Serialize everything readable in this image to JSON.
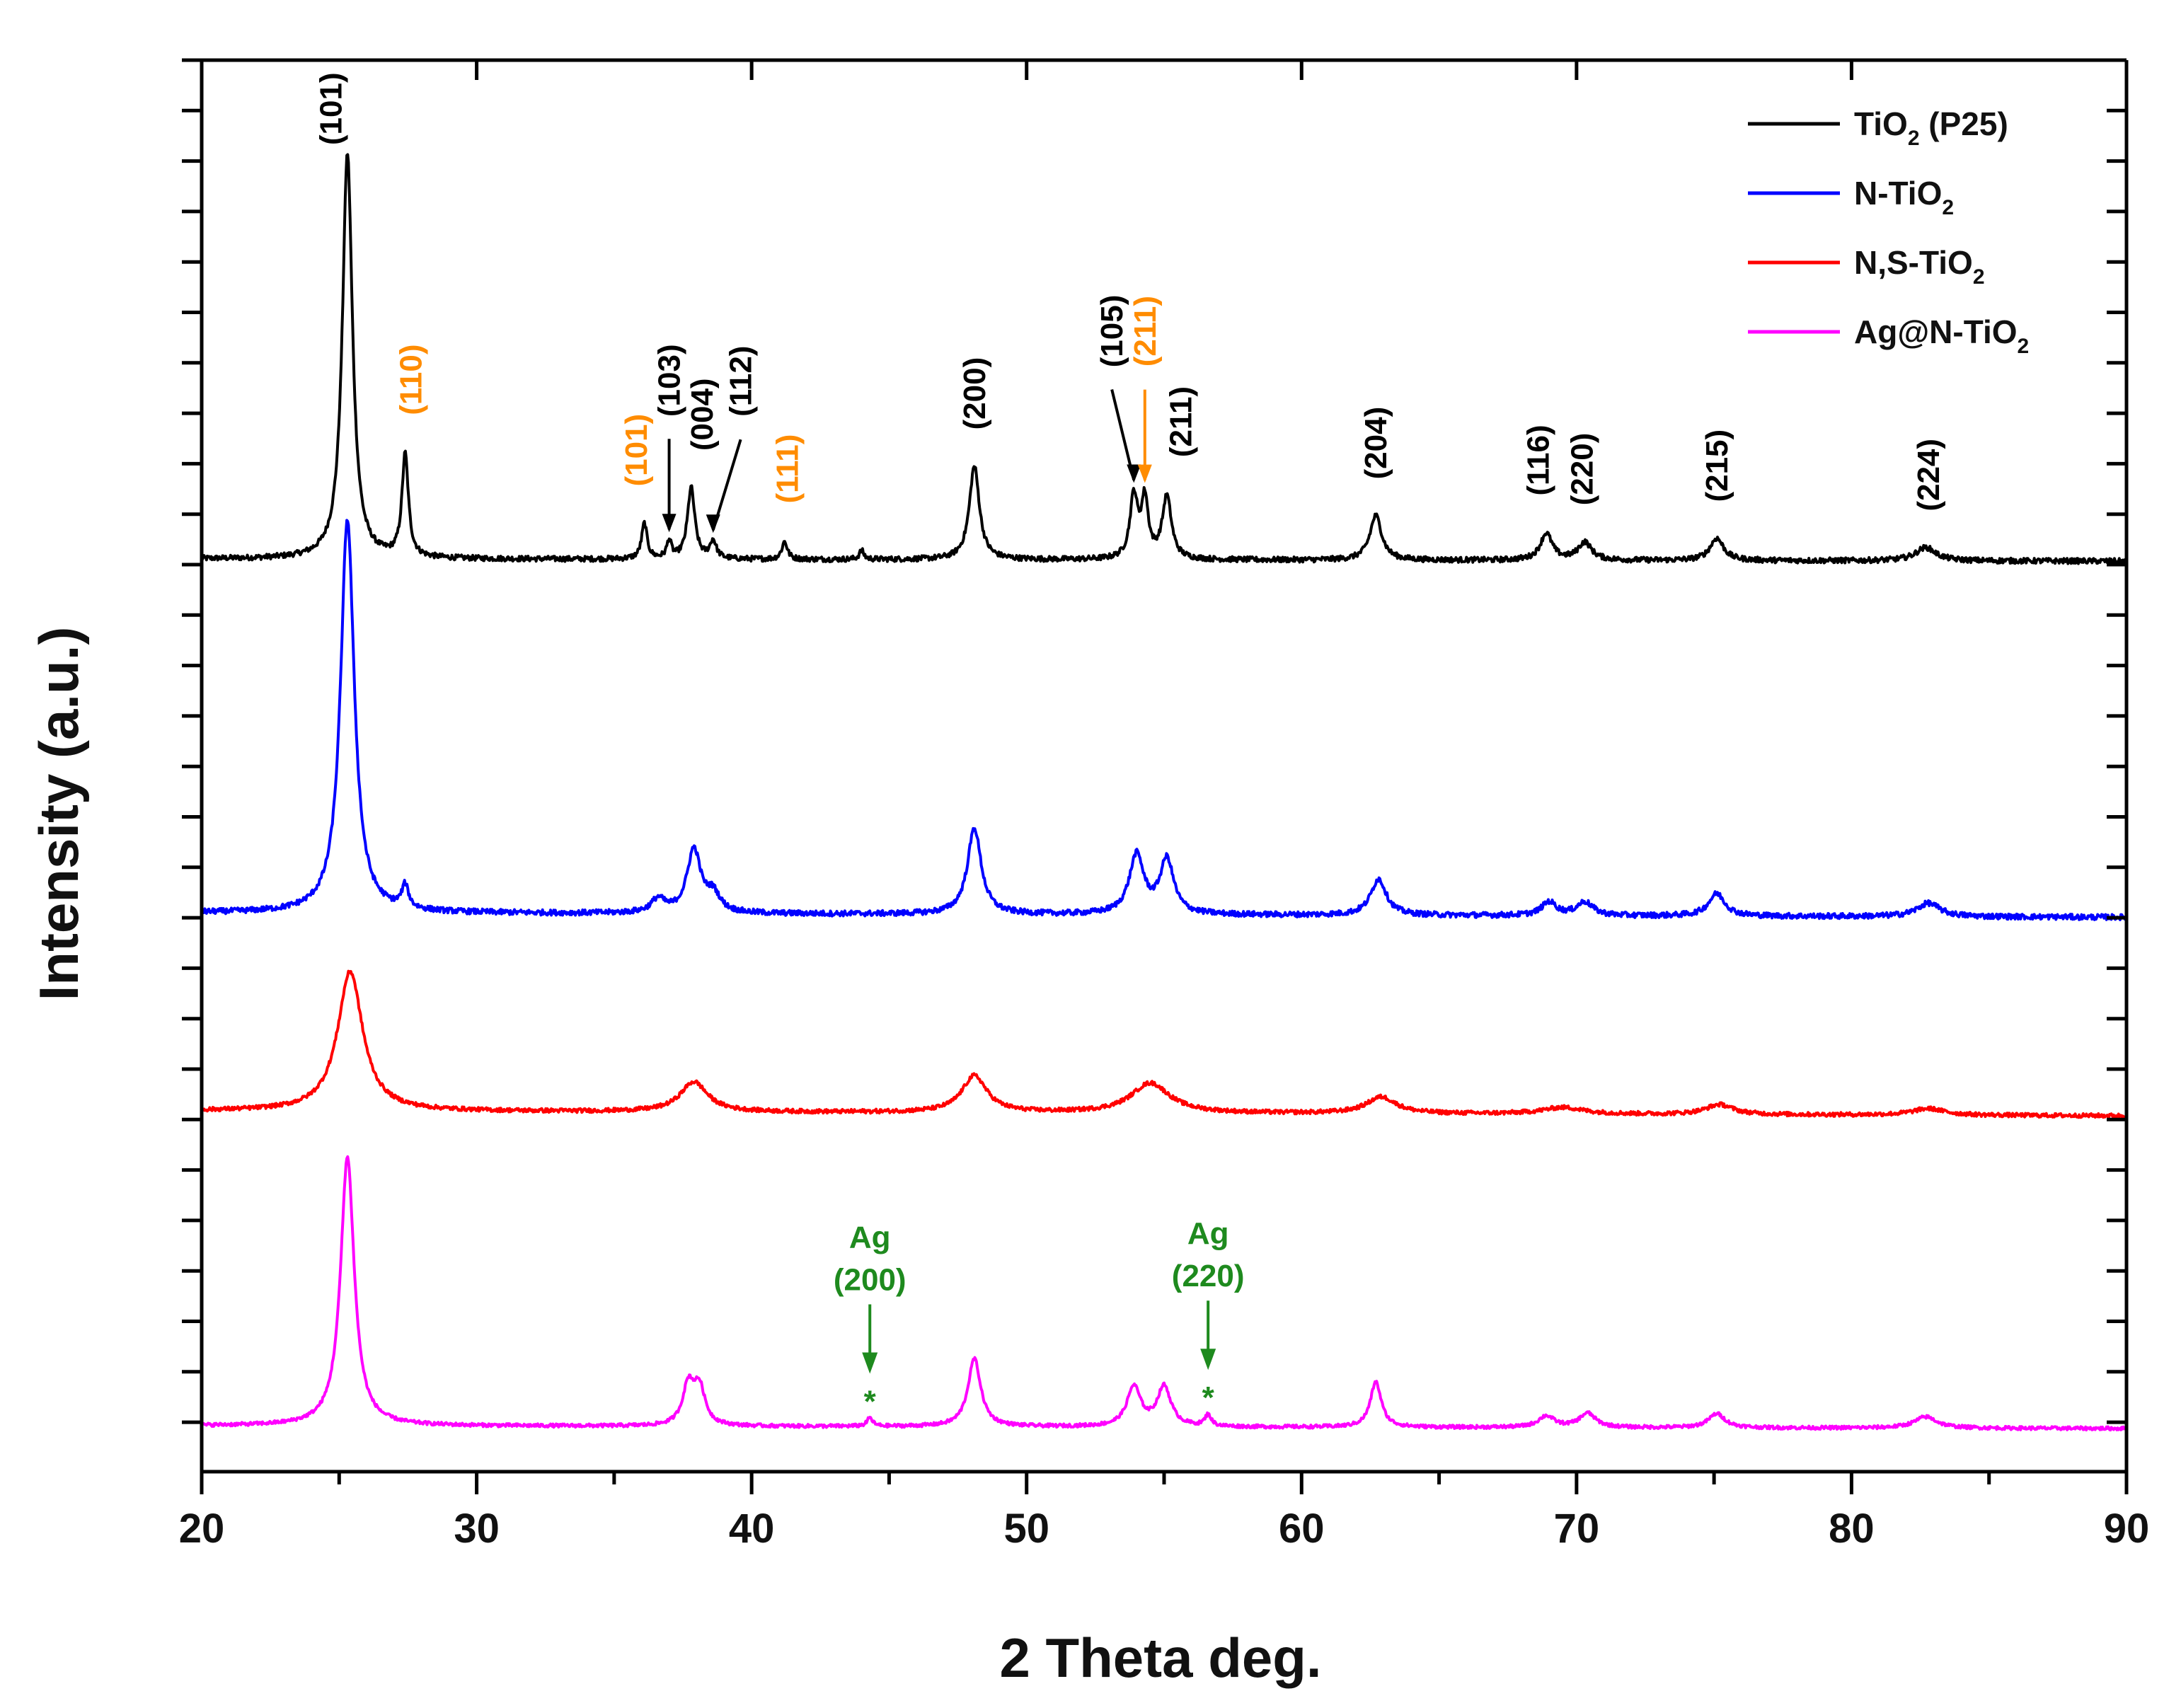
{
  "chart_data": {
    "type": "line",
    "title": "",
    "xlabel": "2 Theta deg.",
    "ylabel": "Intensity (a.u.)",
    "xlim": [
      20,
      90
    ],
    "xticks": [
      "20",
      "30",
      "40",
      "50",
      "60",
      "70",
      "80",
      "90"
    ],
    "offset_stacked": true,
    "legend": {
      "position": "top-right",
      "entries": [
        {
          "name": "TiO",
          "sub": "2",
          "suffix": " (P25)",
          "color": "#000000"
        },
        {
          "name": "N-TiO",
          "sub": "2",
          "suffix": "",
          "color": "#0000ff"
        },
        {
          "name": "N,S-TiO",
          "sub": "2",
          "suffix": "",
          "color": "#ff0000"
        },
        {
          "name": "Ag@N-TiO",
          "sub": "2",
          "suffix": "",
          "color": "#ff00ff"
        }
      ]
    },
    "series": [
      {
        "name": "TiO2 (P25)",
        "color": "#000000",
        "baseline_start": 0.12,
        "baseline_end": 0.115,
        "peaks": [
          {
            "x": 25.3,
            "h": 0.91,
            "w": 0.22
          },
          {
            "x": 27.4,
            "h": 0.23,
            "w": 0.14
          },
          {
            "x": 36.1,
            "h": 0.08,
            "w": 0.12
          },
          {
            "x": 37.0,
            "h": 0.04,
            "w": 0.1
          },
          {
            "x": 37.8,
            "h": 0.16,
            "w": 0.16
          },
          {
            "x": 38.6,
            "h": 0.04,
            "w": 0.14
          },
          {
            "x": 41.2,
            "h": 0.04,
            "w": 0.12
          },
          {
            "x": 44.0,
            "h": 0.02,
            "w": 0.1
          },
          {
            "x": 48.1,
            "h": 0.21,
            "w": 0.22
          },
          {
            "x": 53.9,
            "h": 0.14,
            "w": 0.17
          },
          {
            "x": 54.3,
            "h": 0.13,
            "w": 0.15
          },
          {
            "x": 55.1,
            "h": 0.14,
            "w": 0.2
          },
          {
            "x": 62.7,
            "h": 0.1,
            "w": 0.26
          },
          {
            "x": 68.9,
            "h": 0.06,
            "w": 0.26
          },
          {
            "x": 70.3,
            "h": 0.04,
            "w": 0.3
          },
          {
            "x": 75.1,
            "h": 0.05,
            "w": 0.3
          },
          {
            "x": 82.7,
            "h": 0.03,
            "w": 0.45
          }
        ]
      },
      {
        "name": "N-TiO2",
        "color": "#0000ff",
        "baseline_start": 0.12,
        "baseline_end": 0.11,
        "peaks": [
          {
            "x": 25.3,
            "h": 0.87,
            "w": 0.3
          },
          {
            "x": 27.4,
            "h": 0.05,
            "w": 0.15
          },
          {
            "x": 36.6,
            "h": 0.03,
            "w": 0.3
          },
          {
            "x": 37.9,
            "h": 0.14,
            "w": 0.3
          },
          {
            "x": 38.6,
            "h": 0.04,
            "w": 0.3
          },
          {
            "x": 48.1,
            "h": 0.19,
            "w": 0.3
          },
          {
            "x": 54.0,
            "h": 0.13,
            "w": 0.32
          },
          {
            "x": 55.1,
            "h": 0.12,
            "w": 0.3
          },
          {
            "x": 62.8,
            "h": 0.08,
            "w": 0.34
          },
          {
            "x": 69.0,
            "h": 0.03,
            "w": 0.32
          },
          {
            "x": 70.3,
            "h": 0.03,
            "w": 0.36
          },
          {
            "x": 75.1,
            "h": 0.05,
            "w": 0.36
          },
          {
            "x": 82.8,
            "h": 0.03,
            "w": 0.5
          }
        ]
      },
      {
        "name": "N,S-TiO2",
        "color": "#ff0000",
        "baseline_start": 0.12,
        "baseline_end": 0.105,
        "peaks": [
          {
            "x": 25.4,
            "h": 0.42,
            "w": 0.55
          },
          {
            "x": 37.9,
            "h": 0.09,
            "w": 0.6
          },
          {
            "x": 48.1,
            "h": 0.11,
            "w": 0.55
          },
          {
            "x": 54.5,
            "h": 0.09,
            "w": 0.85
          },
          {
            "x": 62.9,
            "h": 0.05,
            "w": 0.65
          },
          {
            "x": 69.5,
            "h": 0.02,
            "w": 0.9
          },
          {
            "x": 75.2,
            "h": 0.03,
            "w": 0.6
          },
          {
            "x": 82.8,
            "h": 0.02,
            "w": 0.7
          }
        ]
      },
      {
        "name": "Ag@N-TiO2",
        "color": "#ff00ff",
        "baseline_start": 0.12,
        "baseline_end": 0.11,
        "peaks": [
          {
            "x": 25.3,
            "h": 0.95,
            "w": 0.3
          },
          {
            "x": 37.7,
            "h": 0.14,
            "w": 0.25
          },
          {
            "x": 38.1,
            "h": 0.13,
            "w": 0.25
          },
          {
            "x": 44.3,
            "h": 0.03,
            "w": 0.12
          },
          {
            "x": 48.1,
            "h": 0.24,
            "w": 0.28
          },
          {
            "x": 53.9,
            "h": 0.14,
            "w": 0.3
          },
          {
            "x": 55.0,
            "h": 0.14,
            "w": 0.3
          },
          {
            "x": 56.6,
            "h": 0.04,
            "w": 0.14
          },
          {
            "x": 62.7,
            "h": 0.16,
            "w": 0.24
          },
          {
            "x": 68.9,
            "h": 0.04,
            "w": 0.35
          },
          {
            "x": 70.4,
            "h": 0.05,
            "w": 0.36
          },
          {
            "x": 75.1,
            "h": 0.05,
            "w": 0.36
          },
          {
            "x": 82.7,
            "h": 0.04,
            "w": 0.5
          }
        ]
      }
    ],
    "annotations": [
      {
        "text": "(101)",
        "x": 24.7,
        "color": "#000000",
        "rotate": true,
        "anchor_peak": 25.3,
        "series": 0
      },
      {
        "text": "(110)",
        "x": 27.6,
        "color": "#ff8c00",
        "rotate": true,
        "anchor_peak": 27.4,
        "series": 0
      },
      {
        "text": "(101)",
        "x": 35.8,
        "color": "#ff8c00",
        "rotate": true,
        "anchor_peak": 36.1,
        "series": 0
      },
      {
        "text": "(103)",
        "x": 37.0,
        "color": "#000000",
        "rotate": true,
        "arrow": true,
        "anchor_peak": 37.0,
        "series": 0
      },
      {
        "text": "(004)",
        "x": 38.2,
        "color": "#000000",
        "rotate": true,
        "anchor_peak": 37.8,
        "series": 0
      },
      {
        "text": "(112)",
        "x": 39.6,
        "color": "#000000",
        "rotate": true,
        "arrow": true,
        "anchor_peak": 38.6,
        "series": 0
      },
      {
        "text": "(111)",
        "x": 41.3,
        "color": "#ff8c00",
        "rotate": true,
        "anchor_peak": 41.2,
        "series": 0
      },
      {
        "text": "(200)",
        "x": 48.1,
        "color": "#000000",
        "rotate": true,
        "anchor_peak": 48.1,
        "series": 0
      },
      {
        "text": "(105)",
        "x": 53.1,
        "color": "#000000",
        "rotate": true,
        "arrow": true,
        "anchor_peak": 53.9,
        "series": 0
      },
      {
        "text": "(211)",
        "x": 54.3,
        "color": "#ff8c00",
        "rotate": true,
        "arrow": true,
        "anchor_peak": 54.3,
        "series": 0
      },
      {
        "text": "(211)",
        "x": 55.6,
        "color": "#000000",
        "rotate": true,
        "anchor_peak": 55.1,
        "series": 0
      },
      {
        "text": "(204)",
        "x": 62.7,
        "color": "#000000",
        "rotate": true,
        "anchor_peak": 62.7,
        "series": 0
      },
      {
        "text": "(116)",
        "x": 68.6,
        "color": "#000000",
        "rotate": true,
        "anchor_peak": 68.9,
        "series": 0
      },
      {
        "text": "(220)",
        "x": 70.2,
        "color": "#000000",
        "rotate": true,
        "anchor_peak": 70.3,
        "series": 0
      },
      {
        "text": "(215)",
        "x": 75.1,
        "color": "#000000",
        "rotate": true,
        "anchor_peak": 75.1,
        "series": 0
      },
      {
        "text": "(224)",
        "x": 82.8,
        "color": "#000000",
        "rotate": true,
        "anchor_peak": 82.7,
        "series": 0
      },
      {
        "text": "Ag",
        "text2": "(200)",
        "x": 44.3,
        "color": "#1e8a1e",
        "rotate": false,
        "arrow": true,
        "star": true,
        "anchor_peak": 44.3,
        "series": 3
      },
      {
        "text": "Ag",
        "text2": "(220)",
        "x": 56.6,
        "color": "#1e8a1e",
        "rotate": false,
        "arrow": true,
        "star": true,
        "anchor_peak": 56.6,
        "series": 3
      }
    ]
  }
}
